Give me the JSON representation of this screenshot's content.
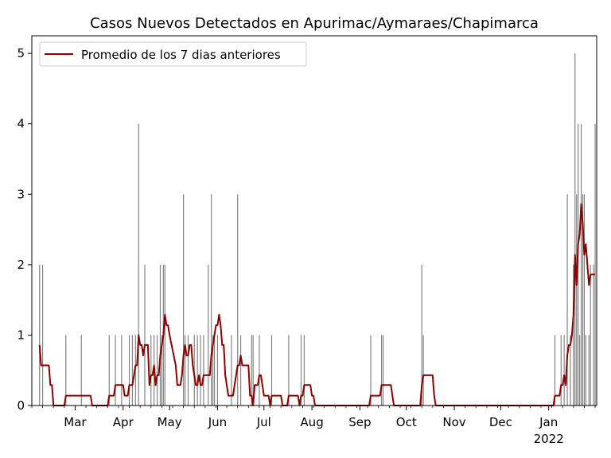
{
  "chart_data": {
    "type": "bar",
    "title": "Casos Nuevos Detectados en Apurimac/Aymaraes/Chapimarca",
    "xlabel": "",
    "ylabel": "",
    "x_range": [
      "2021-02-01",
      "2022-02-01"
    ],
    "ylim": [
      0,
      5.25
    ],
    "y_ticks": [
      0,
      1,
      2,
      3,
      4,
      5
    ],
    "x_ticks": [
      {
        "date": "2021-03-01",
        "label": "Mar"
      },
      {
        "date": "2021-04-01",
        "label": "Apr"
      },
      {
        "date": "2021-05-01",
        "label": "May"
      },
      {
        "date": "2021-06-01",
        "label": "Jun"
      },
      {
        "date": "2021-07-01",
        "label": "Jul"
      },
      {
        "date": "2021-08-01",
        "label": "Aug"
      },
      {
        "date": "2021-09-01",
        "label": "Sep"
      },
      {
        "date": "2021-10-01",
        "label": "Oct"
      },
      {
        "date": "2021-11-01",
        "label": "Nov"
      },
      {
        "date": "2021-12-01",
        "label": "Dec"
      },
      {
        "date": "2022-01-01",
        "label": "Jan",
        "sublabel": "2022"
      }
    ],
    "grid": false,
    "legend_position": "top-left",
    "colors": {
      "bars": "#808080",
      "line": "#8b0000"
    },
    "series": [
      {
        "kind": "bar",
        "values": [
          [
            "2021-02-06",
            2
          ],
          [
            "2021-02-08",
            2
          ],
          [
            "2021-02-23",
            1
          ],
          [
            "2021-03-05",
            1
          ],
          [
            "2021-03-23",
            1
          ],
          [
            "2021-03-27",
            1
          ],
          [
            "2021-03-31",
            1
          ],
          [
            "2021-04-05",
            1
          ],
          [
            "2021-04-07",
            1
          ],
          [
            "2021-04-09",
            1
          ],
          [
            "2021-04-11",
            4
          ],
          [
            "2021-04-15",
            2
          ],
          [
            "2021-04-19",
            1
          ],
          [
            "2021-04-21",
            1
          ],
          [
            "2021-04-23",
            1
          ],
          [
            "2021-04-25",
            2
          ],
          [
            "2021-04-26",
            1
          ],
          [
            "2021-04-27",
            2
          ],
          [
            "2021-04-28",
            2
          ],
          [
            "2021-05-10",
            3
          ],
          [
            "2021-05-11",
            1
          ],
          [
            "2021-05-13",
            1
          ],
          [
            "2021-05-17",
            1
          ],
          [
            "2021-05-19",
            1
          ],
          [
            "2021-05-21",
            1
          ],
          [
            "2021-05-23",
            1
          ],
          [
            "2021-05-26",
            2
          ],
          [
            "2021-05-28",
            3
          ],
          [
            "2021-05-29",
            1
          ],
          [
            "2021-05-30",
            1
          ],
          [
            "2021-06-01",
            1
          ],
          [
            "2021-06-10",
            1
          ],
          [
            "2021-06-14",
            3
          ],
          [
            "2021-06-16",
            1
          ],
          [
            "2021-06-23",
            1
          ],
          [
            "2021-06-24",
            1
          ],
          [
            "2021-06-28",
            1
          ],
          [
            "2021-07-06",
            1
          ],
          [
            "2021-07-17",
            1
          ],
          [
            "2021-07-25",
            1
          ],
          [
            "2021-07-27",
            1
          ],
          [
            "2021-09-08",
            1
          ],
          [
            "2021-09-15",
            1
          ],
          [
            "2021-09-16",
            1
          ],
          [
            "2021-10-11",
            2
          ],
          [
            "2021-10-12",
            1
          ],
          [
            "2022-01-05",
            1
          ],
          [
            "2022-01-09",
            1
          ],
          [
            "2022-01-11",
            1
          ],
          [
            "2022-01-13",
            3
          ],
          [
            "2022-01-15",
            1
          ],
          [
            "2022-01-17",
            2
          ],
          [
            "2022-01-18",
            5
          ],
          [
            "2022-01-19",
            3
          ],
          [
            "2022-01-20",
            4
          ],
          [
            "2022-01-21",
            1
          ],
          [
            "2022-01-22",
            4
          ],
          [
            "2022-01-23",
            3
          ],
          [
            "2022-01-24",
            3
          ],
          [
            "2022-01-25",
            1
          ],
          [
            "2022-01-27",
            1
          ],
          [
            "2022-01-28",
            2
          ],
          [
            "2022-01-30",
            2
          ],
          [
            "2022-01-31",
            4
          ]
        ]
      },
      {
        "kind": "line",
        "name": "Promedio de los 7 dias anteriores",
        "values": [
          [
            "2021-02-06",
            0.86
          ],
          [
            "2021-02-07",
            0.57
          ],
          [
            "2021-02-12",
            0.57
          ],
          [
            "2021-02-13",
            0.29
          ],
          [
            "2021-02-14",
            0.29
          ],
          [
            "2021-02-15",
            0
          ],
          [
            "2021-02-22",
            0
          ],
          [
            "2021-02-23",
            0.14
          ],
          [
            "2021-03-11",
            0.14
          ],
          [
            "2021-03-12",
            0
          ],
          [
            "2021-03-22",
            0
          ],
          [
            "2021-03-23",
            0.14
          ],
          [
            "2021-03-26",
            0.14
          ],
          [
            "2021-03-27",
            0.29
          ],
          [
            "2021-04-01",
            0.29
          ],
          [
            "2021-04-02",
            0.14
          ],
          [
            "2021-04-04",
            0.14
          ],
          [
            "2021-04-05",
            0.29
          ],
          [
            "2021-04-07",
            0.29
          ],
          [
            "2021-04-08",
            0.43
          ],
          [
            "2021-04-09",
            0.57
          ],
          [
            "2021-04-10",
            0.57
          ],
          [
            "2021-04-11",
            1.0
          ],
          [
            "2021-04-12",
            0.86
          ],
          [
            "2021-04-13",
            0.86
          ],
          [
            "2021-04-14",
            0.71
          ],
          [
            "2021-04-15",
            0.86
          ],
          [
            "2021-04-17",
            0.86
          ],
          [
            "2021-04-18",
            0.29
          ],
          [
            "2021-04-19",
            0.43
          ],
          [
            "2021-04-20",
            0.43
          ],
          [
            "2021-04-21",
            0.57
          ],
          [
            "2021-04-22",
            0.29
          ],
          [
            "2021-04-23",
            0.43
          ],
          [
            "2021-04-24",
            0.43
          ],
          [
            "2021-04-25",
            0.71
          ],
          [
            "2021-04-26",
            0.86
          ],
          [
            "2021-04-27",
            1.0
          ],
          [
            "2021-04-28",
            1.29
          ],
          [
            "2021-04-29",
            1.14
          ],
          [
            "2021-04-30",
            1.14
          ],
          [
            "2021-05-01",
            1.0
          ],
          [
            "2021-05-05",
            0.57
          ],
          [
            "2021-05-06",
            0.29
          ],
          [
            "2021-05-08",
            0.29
          ],
          [
            "2021-05-09",
            0.43
          ],
          [
            "2021-05-10",
            0.71
          ],
          [
            "2021-05-11",
            0.86
          ],
          [
            "2021-05-12",
            0.71
          ],
          [
            "2021-05-13",
            0.71
          ],
          [
            "2021-05-14",
            0.86
          ],
          [
            "2021-05-15",
            0.86
          ],
          [
            "2021-05-16",
            0.57
          ],
          [
            "2021-05-17",
            0.43
          ],
          [
            "2021-05-18",
            0.29
          ],
          [
            "2021-05-19",
            0.29
          ],
          [
            "2021-05-20",
            0.43
          ],
          [
            "2021-05-21",
            0.29
          ],
          [
            "2021-05-22",
            0.29
          ],
          [
            "2021-05-23",
            0.43
          ],
          [
            "2021-05-27",
            0.43
          ],
          [
            "2021-05-28",
            0.71
          ],
          [
            "2021-05-29",
            0.86
          ],
          [
            "2021-05-30",
            1.0
          ],
          [
            "2021-05-31",
            1.14
          ],
          [
            "2021-06-01",
            1.14
          ],
          [
            "2021-06-02",
            1.29
          ],
          [
            "2021-06-03",
            1.14
          ],
          [
            "2021-06-04",
            0.86
          ],
          [
            "2021-06-05",
            0.86
          ],
          [
            "2021-06-06",
            0.43
          ],
          [
            "2021-06-08",
            0.14
          ],
          [
            "2021-06-11",
            0.14
          ],
          [
            "2021-06-13",
            0.43
          ],
          [
            "2021-06-14",
            0.57
          ],
          [
            "2021-06-15",
            0.57
          ],
          [
            "2021-06-16",
            0.71
          ],
          [
            "2021-06-17",
            0.57
          ],
          [
            "2021-06-21",
            0.57
          ],
          [
            "2021-06-22",
            0.14
          ],
          [
            "2021-06-23",
            0.14
          ],
          [
            "2021-06-24",
            0
          ],
          [
            "2021-06-25",
            0.29
          ],
          [
            "2021-06-26",
            0.29
          ],
          [
            "2021-06-27",
            0.29
          ],
          [
            "2021-06-28",
            0.43
          ],
          [
            "2021-06-29",
            0.43
          ],
          [
            "2021-06-30",
            0.29
          ],
          [
            "2021-07-01",
            0.14
          ],
          [
            "2021-07-04",
            0.14
          ],
          [
            "2021-07-05",
            0
          ],
          [
            "2021-07-06",
            0.14
          ],
          [
            "2021-07-12",
            0.14
          ],
          [
            "2021-07-13",
            0
          ],
          [
            "2021-07-16",
            0
          ],
          [
            "2021-07-17",
            0.14
          ],
          [
            "2021-07-23",
            0.14
          ],
          [
            "2021-07-24",
            0
          ],
          [
            "2021-07-25",
            0.14
          ],
          [
            "2021-07-26",
            0.14
          ],
          [
            "2021-07-27",
            0.29
          ],
          [
            "2021-07-31",
            0.29
          ],
          [
            "2021-08-01",
            0.14
          ],
          [
            "2021-08-02",
            0.14
          ],
          [
            "2021-08-03",
            0
          ],
          [
            "2021-09-07",
            0
          ],
          [
            "2021-09-08",
            0.14
          ],
          [
            "2021-09-14",
            0.14
          ],
          [
            "2021-09-15",
            0.29
          ],
          [
            "2021-09-21",
            0.29
          ],
          [
            "2021-09-22",
            0.14
          ],
          [
            "2021-09-23",
            0
          ],
          [
            "2021-10-10",
            0
          ],
          [
            "2021-10-11",
            0.29
          ],
          [
            "2021-10-12",
            0.43
          ],
          [
            "2021-10-18",
            0.43
          ],
          [
            "2021-10-19",
            0.14
          ],
          [
            "2021-10-20",
            0
          ],
          [
            "2022-01-04",
            0
          ],
          [
            "2022-01-05",
            0.14
          ],
          [
            "2022-01-08",
            0.14
          ],
          [
            "2022-01-09",
            0.29
          ],
          [
            "2022-01-10",
            0.29
          ],
          [
            "2022-01-11",
            0.43
          ],
          [
            "2022-01-12",
            0.29
          ],
          [
            "2022-01-13",
            0.71
          ],
          [
            "2022-01-14",
            0.86
          ],
          [
            "2022-01-15",
            0.86
          ],
          [
            "2022-01-16",
            1.0
          ],
          [
            "2022-01-17",
            1.29
          ],
          [
            "2022-01-18",
            2.14
          ],
          [
            "2022-01-19",
            1.71
          ],
          [
            "2022-01-20",
            2.29
          ],
          [
            "2022-01-21",
            2.43
          ],
          [
            "2022-01-22",
            2.86
          ],
          [
            "2022-01-23",
            2.57
          ],
          [
            "2022-01-24",
            2.14
          ],
          [
            "2022-01-25",
            2.29
          ],
          [
            "2022-01-26",
            2.0
          ],
          [
            "2022-01-27",
            1.71
          ],
          [
            "2022-01-28",
            1.86
          ],
          [
            "2022-01-31",
            1.86
          ]
        ]
      }
    ]
  }
}
